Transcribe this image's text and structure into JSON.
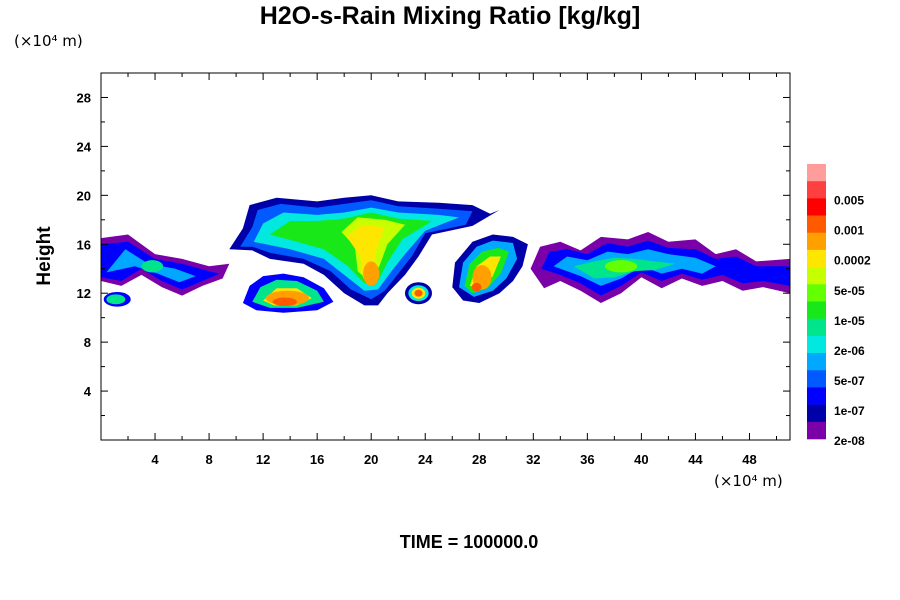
{
  "chart_data": {
    "type": "heatmap",
    "title": "H2O-s-Rain Mixing Ratio [kg/kg]",
    "xlabel": "",
    "ylabel": "Height",
    "x_unit_label": "(×10⁴ m)",
    "y_unit_label": "(×10⁴ m)",
    "xlim": [
      0,
      51
    ],
    "ylim": [
      0,
      30
    ],
    "x_ticks": [
      4,
      8,
      12,
      16,
      20,
      24,
      28,
      32,
      36,
      40,
      44,
      48
    ],
    "y_ticks": [
      4,
      8,
      12,
      16,
      20,
      24,
      28
    ],
    "colorbar": {
      "labels": [
        "0.005",
        "0.001",
        "0.0002",
        "5e-05",
        "1e-05",
        "2e-06",
        "5e-07",
        "1e-07",
        "2e-08"
      ],
      "colors": [
        "#ff9c9c",
        "#ff4040",
        "#ff0000",
        "#ff5a00",
        "#ffa000",
        "#ffe600",
        "#c8ff00",
        "#64ff00",
        "#18e818",
        "#00e48c",
        "#00e8e0",
        "#00a8ff",
        "#005aff",
        "#0000ff",
        "#0000a8",
        "#7a00a8"
      ]
    },
    "features": [
      {
        "name": "upper-left-band",
        "x_range": [
          0,
          9
        ],
        "y_range": [
          12,
          17
        ],
        "peak_level": 8
      },
      {
        "name": "small-left-patch",
        "x_range": [
          0,
          2
        ],
        "y_range": [
          10.5,
          12
        ],
        "peak_level": 7
      },
      {
        "name": "lower-cell",
        "x_range": [
          10.5,
          17
        ],
        "y_range": [
          10.5,
          13.5
        ],
        "peak_level": 2
      },
      {
        "name": "main-anvil",
        "x_range": [
          10,
          29
        ],
        "y_range": [
          11,
          20
        ],
        "peak_level": 3
      },
      {
        "name": "small-core",
        "x_range": [
          22,
          24.5
        ],
        "y_range": [
          11,
          13
        ],
        "peak_level": 3
      },
      {
        "name": "right-core",
        "x_range": [
          26,
          32
        ],
        "y_range": [
          11,
          17
        ],
        "peak_level": 3
      },
      {
        "name": "upper-right-band",
        "x_range": [
          32,
          51
        ],
        "y_range": [
          11,
          17
        ],
        "peak_level": 6
      }
    ]
  },
  "footer": {
    "time_label": "TIME = 100000.0"
  }
}
